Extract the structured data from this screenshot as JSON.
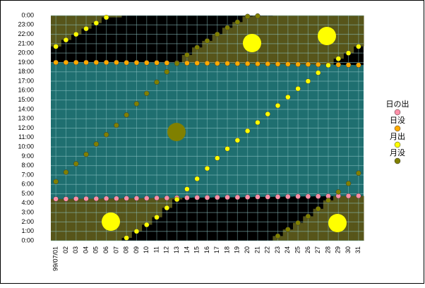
{
  "chart_data": {
    "type": "line",
    "categories": [
      "99/07/01",
      "02",
      "03",
      "04",
      "05",
      "06",
      "07",
      "08",
      "09",
      "10",
      "11",
      "12",
      "13",
      "14",
      "15",
      "16",
      "17",
      "18",
      "19",
      "20",
      "21",
      "22",
      "23",
      "24",
      "25",
      "26",
      "27",
      "28",
      "29",
      "30",
      "31"
    ],
    "series": [
      {
        "name": "日の出",
        "color": "#ff8fa8",
        "values": [
          4.45,
          4.45,
          4.47,
          4.48,
          4.48,
          4.5,
          4.5,
          4.52,
          4.52,
          4.53,
          4.55,
          4.55,
          4.57,
          4.58,
          4.6,
          4.6,
          4.62,
          4.63,
          4.63,
          4.65,
          4.67,
          4.67,
          4.68,
          4.7,
          4.72,
          4.72,
          4.73,
          4.75,
          4.77,
          4.77,
          4.78
        ]
      },
      {
        "name": "日没",
        "color": "#ffaa00",
        "values": [
          19.0,
          19.0,
          19.0,
          19.0,
          19.0,
          19.0,
          19.0,
          18.98,
          18.98,
          18.97,
          18.97,
          18.95,
          18.95,
          18.93,
          18.93,
          18.92,
          18.9,
          18.9,
          18.88,
          18.87,
          18.85,
          18.85,
          18.83,
          18.82,
          18.8,
          18.8,
          18.78,
          18.77,
          18.75,
          18.73,
          18.72
        ]
      },
      {
        "name": "月出",
        "color": "#ffff00",
        "values": [
          20.7,
          21.4,
          22.0,
          22.6,
          23.2,
          23.8,
          null,
          0.3,
          1.0,
          1.7,
          2.5,
          3.5,
          4.4,
          5.5,
          6.6,
          7.7,
          8.8,
          9.8,
          10.7,
          11.7,
          12.6,
          13.5,
          14.4,
          15.3,
          16.2,
          17.0,
          17.9,
          18.7,
          19.4,
          20.0,
          20.7
        ]
      },
      {
        "name": "月没",
        "color": "#808000",
        "values": [
          6.3,
          7.3,
          8.2,
          9.2,
          10.3,
          11.3,
          12.3,
          13.4,
          14.6,
          15.7,
          16.9,
          18.0,
          18.9,
          19.8,
          20.6,
          21.3,
          22.0,
          22.7,
          23.3,
          23.9,
          23.95,
          null,
          0.5,
          1.2,
          1.9,
          2.6,
          3.4,
          4.3,
          5.2,
          6.1,
          7.2
        ]
      }
    ],
    "ylim": [
      0,
      24
    ],
    "yticks": [
      {
        "value": 0,
        "label": "0:00"
      },
      {
        "value": 1,
        "label": "1:00"
      },
      {
        "value": 2,
        "label": "2:00"
      },
      {
        "value": 3,
        "label": "3:00"
      },
      {
        "value": 4,
        "label": "4:00"
      },
      {
        "value": 5,
        "label": "5:00"
      },
      {
        "value": 6,
        "label": "6:00"
      },
      {
        "value": 7,
        "label": "7:00"
      },
      {
        "value": 8,
        "label": "8:00"
      },
      {
        "value": 9,
        "label": "9:00"
      },
      {
        "value": 10,
        "label": "10:00"
      },
      {
        "value": 11,
        "label": "11:00"
      },
      {
        "value": 12,
        "label": "12:00"
      },
      {
        "value": 13,
        "label": "13:00"
      },
      {
        "value": 14,
        "label": "14:00"
      },
      {
        "value": 15,
        "label": "15:00"
      },
      {
        "value": 16,
        "label": "16:00"
      },
      {
        "value": 17,
        "label": "17:00"
      },
      {
        "value": 18,
        "label": "18:00"
      },
      {
        "value": 19,
        "label": "19:00"
      },
      {
        "value": 20,
        "label": "20:00"
      },
      {
        "value": 21,
        "label": "21:00"
      },
      {
        "value": 22,
        "label": "22:00"
      },
      {
        "value": 23,
        "label": "23:00"
      },
      {
        "value": 24,
        "label": "0:00"
      }
    ],
    "grid": true,
    "legend": "right"
  }
}
